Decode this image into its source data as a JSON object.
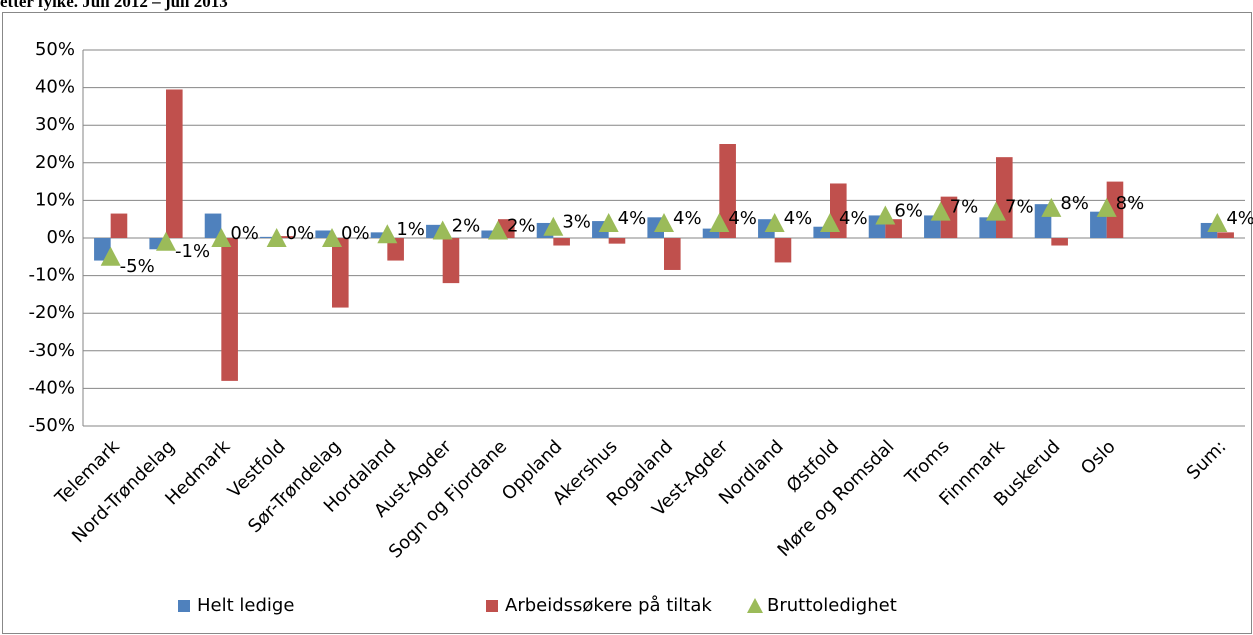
{
  "chart_data": {
    "type": "bar",
    "title": "etter fylke.  Juli 2012 – juli 2013",
    "categories": [
      "Telemark",
      "Nord-Trøndelag",
      "Hedmark",
      "Vestfold",
      "Sør-Trøndelag",
      "Hordaland",
      "Aust-Agder",
      "Sogn og Fjordane",
      "Oppland",
      "Akershus",
      "Rogaland",
      "Vest-Agder",
      "Nordland",
      "Østfold",
      "Møre og Romsdal",
      "Troms",
      "Finnmark",
      "Buskerud",
      "Oslo",
      null,
      "Sum:"
    ],
    "series": [
      {
        "name": "Helt ledige",
        "color": "#4f81bd",
        "type": "bar",
        "values": [
          -6,
          -3,
          6.5,
          0.3,
          2,
          1.5,
          3.5,
          2,
          4,
          4.5,
          5.5,
          2.5,
          5,
          3,
          6,
          6,
          5.5,
          9,
          7,
          null,
          4
        ]
      },
      {
        "name": "Arbeidssøkere på tiltak",
        "color": "#c0504d",
        "type": "bar",
        "values": [
          6.5,
          39.5,
          -38,
          0.5,
          -18.5,
          -6,
          -12,
          5,
          -2,
          -1.5,
          -8.5,
          25,
          -6.5,
          14.5,
          5,
          11,
          21.5,
          -2,
          15,
          null,
          1.5
        ]
      },
      {
        "name": "Bruttoledighet",
        "color": "#9bbb59",
        "type": "marker",
        "values": [
          -5,
          -1,
          0,
          0,
          0,
          1,
          2,
          2,
          3,
          4,
          4,
          4,
          4,
          4,
          6,
          7,
          7,
          8,
          8,
          null,
          4
        ],
        "value_labels": [
          "-5%",
          "-1%",
          "0%",
          "0%",
          "0%",
          "1%",
          "2%",
          "2%",
          "3%",
          "4%",
          "4%",
          "4%",
          "4%",
          "4%",
          "6%",
          "7%",
          "7%",
          "8%",
          "8%",
          null,
          "4%"
        ]
      }
    ],
    "ylim": [
      -50,
      50
    ],
    "yticks": [
      {
        "value": -50,
        "label": "-50%"
      },
      {
        "value": -40,
        "label": "-40%"
      },
      {
        "value": -30,
        "label": "-30%"
      },
      {
        "value": -20,
        "label": "-20%"
      },
      {
        "value": -10,
        "label": "-10%"
      },
      {
        "value": 0,
        "label": "0%"
      },
      {
        "value": 10,
        "label": "10%"
      },
      {
        "value": 20,
        "label": "20%"
      },
      {
        "value": 30,
        "label": "30%"
      },
      {
        "value": 40,
        "label": "40%"
      },
      {
        "value": 50,
        "label": "50%"
      }
    ],
    "grid": true,
    "legend": "bottom"
  }
}
